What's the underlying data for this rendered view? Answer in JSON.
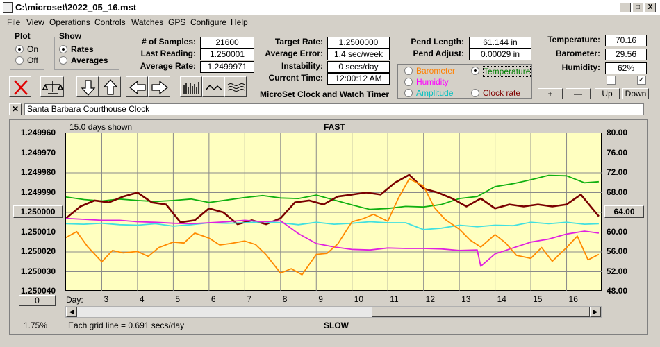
{
  "window": {
    "title": "C:\\microset\\2022_05_16.mst",
    "min_label": "_",
    "max_label": "□",
    "close_label": "X"
  },
  "menu": [
    "File",
    "View",
    "Operations",
    "Controls",
    "Watches",
    "GPS",
    "Configure",
    "Help"
  ],
  "plot_group": {
    "title": "Plot",
    "options": [
      "On",
      "Off"
    ],
    "selected": "On"
  },
  "show_group": {
    "title": "Show",
    "options": [
      "Rates",
      "Averages"
    ],
    "selected": "Rates"
  },
  "stats": {
    "samples_label": "# of Samples:",
    "samples": "21600",
    "last_reading_label": "Last Reading:",
    "last_reading": "1.250001",
    "average_rate_label": "Average Rate:",
    "average_rate": "1.2499971",
    "target_rate_label": "Target Rate:",
    "target_rate": "1.2500000",
    "average_error_label": "Average Error:",
    "average_error": "1.4 sec/week",
    "instability_label": "Instability:",
    "instability": "0 secs/day",
    "current_time_label": "Current Time:",
    "current_time": "12:00:12 AM",
    "app_name": "MicroSet Clock and Watch Timer",
    "pend_length_label": "Pend Length:",
    "pend_length": "61.144 in",
    "pend_adjust_label": "Pend Adjust:",
    "pend_adjust": "0.00029 in",
    "temperature_label": "Temperature:",
    "temperature": "70.16",
    "barometer_label": "Barometer:",
    "barometer": "29.56",
    "humidity_label": "Humidity:",
    "humidity": "62%"
  },
  "sensor_options": [
    {
      "label": "Barometer",
      "color": "#ff8000",
      "selected": false
    },
    {
      "label": "Temperature",
      "color": "#008000",
      "selected": true
    },
    {
      "label": "Humidity",
      "color": "#ff00ff",
      "selected": false
    },
    {
      "label": "Clock rate",
      "color": "#800000",
      "selected": false
    },
    {
      "label": "Amplitude",
      "color": "#00c0c0",
      "selected": false
    }
  ],
  "scale_buttons": [
    "+",
    "—",
    "Up",
    "Down"
  ],
  "clock_name": "Santa Barbara Courthouse Clock",
  "chart": {
    "days_shown": "15.0 days shown",
    "top_label": "FAST",
    "bottom_label": "SLOW",
    "day_label": "Day:",
    "grid_note": "Each grid line = 0.691 secs/day",
    "percent": "1.75%",
    "left_button": "1.250000",
    "right_button": "64.00",
    "zero_button": "0"
  },
  "chart_data": {
    "type": "line",
    "left_axis_ticks": [
      "1.249960",
      "1.249970",
      "1.249980",
      "1.249990",
      "1.250000",
      "1.250010",
      "1.250020",
      "1.250030",
      "1.250040"
    ],
    "right_axis_ticks": [
      "80.00",
      "76.00",
      "72.00",
      "68.00",
      "64.00",
      "60.00",
      "56.00",
      "52.00",
      "48.00"
    ],
    "x_ticks": [
      3,
      4,
      5,
      6,
      7,
      8,
      9,
      10,
      11,
      12,
      13,
      14,
      15,
      16
    ],
    "xlim": [
      2.0,
      17.0
    ],
    "ylim_rate": [
      1.24996,
      1.25004
    ],
    "ylim_right": [
      48,
      80
    ],
    "series": [
      {
        "name": "Temperature",
        "color": "#10b010",
        "x": [
          2.0,
          2.5,
          3.0,
          3.5,
          4.0,
          4.5,
          5.0,
          5.5,
          6.0,
          6.5,
          7.0,
          7.5,
          8.0,
          8.5,
          9.0,
          9.5,
          10.0,
          10.5,
          11.0,
          11.5,
          12.0,
          12.5,
          13.0,
          13.5,
          14.0,
          14.5,
          15.0,
          15.5,
          16.0,
          16.5,
          16.9
        ],
        "y": [
          67.1,
          66.6,
          66.3,
          66.7,
          66.4,
          66.2,
          66.4,
          66.7,
          66.0,
          66.5,
          67.0,
          67.4,
          66.9,
          66.8,
          67.5,
          66.5,
          65.5,
          64.6,
          64.8,
          65.2,
          65.1,
          65.6,
          66.8,
          67.2,
          69.2,
          69.8,
          70.6,
          71.5,
          71.4,
          70.0,
          70.2
        ]
      },
      {
        "name": "Clock rate",
        "color": "#7a0000",
        "x": [
          2.0,
          2.4,
          2.8,
          3.2,
          3.6,
          4.0,
          4.4,
          4.8,
          5.2,
          5.6,
          6.0,
          6.4,
          6.8,
          7.2,
          7.6,
          8.0,
          8.4,
          8.8,
          9.2,
          9.6,
          10.0,
          10.4,
          10.8,
          11.2,
          11.6,
          12.0,
          12.4,
          12.8,
          13.2,
          13.6,
          14.0,
          14.4,
          14.8,
          15.2,
          15.6,
          16.0,
          16.4,
          16.9
        ],
        "y": [
          1.250003,
          1.249997,
          1.249994,
          1.249995,
          1.249992,
          1.24999,
          1.249995,
          1.249996,
          1.250005,
          1.250004,
          1.249998,
          1.25,
          1.250006,
          1.250004,
          1.250006,
          1.250003,
          1.249995,
          1.249994,
          1.249996,
          1.249992,
          1.249991,
          1.24999,
          1.249991,
          1.249985,
          1.249981,
          1.249988,
          1.24999,
          1.249993,
          1.249997,
          1.249993,
          1.249998,
          1.249996,
          1.249997,
          1.249996,
          1.249997,
          1.249996,
          1.249991,
          1.250002
        ]
      },
      {
        "name": "Amplitude",
        "color": "#40e0e0",
        "x": [
          2.0,
          2.5,
          3.0,
          3.5,
          4.0,
          4.5,
          5.0,
          5.5,
          6.0,
          6.5,
          7.0,
          7.5,
          8.0,
          8.5,
          9.0,
          9.5,
          10.0,
          10.5,
          11.0,
          11.5,
          12.0,
          12.5,
          13.0,
          13.5,
          14.0,
          14.5,
          15.0,
          15.5,
          16.0,
          16.5,
          16.9
        ],
        "y": [
          61.7,
          61.6,
          61.8,
          61.5,
          61.4,
          61.7,
          61.2,
          61.5,
          61.9,
          61.8,
          61.9,
          62.1,
          61.9,
          61.5,
          62.0,
          61.6,
          61.8,
          62.1,
          61.9,
          61.9,
          60.5,
          60.8,
          61.4,
          61.1,
          61.4,
          61.3,
          62.0,
          61.7,
          62.0,
          61.6,
          61.7
        ]
      },
      {
        "name": "Humidity",
        "color": "#e020e0",
        "x": [
          2.0,
          2.5,
          3.0,
          3.5,
          4.0,
          4.5,
          5.0,
          5.5,
          6.0,
          6.5,
          7.0,
          7.5,
          8.0,
          8.5,
          9.0,
          9.5,
          10.0,
          10.5,
          11.0,
          11.5,
          12.0,
          12.5,
          13.0,
          13.5,
          13.6,
          14.0,
          14.5,
          15.0,
          15.5,
          16.0,
          16.5,
          16.9
        ],
        "y": [
          62.8,
          62.6,
          62.4,
          62.4,
          62.1,
          62.0,
          61.8,
          61.7,
          61.9,
          62.1,
          62.4,
          62.1,
          62.3,
          59.7,
          57.7,
          57.0,
          56.5,
          56.4,
          56.8,
          56.7,
          56.7,
          56.6,
          56.3,
          56.4,
          53.1,
          55.6,
          56.8,
          58.0,
          58.6,
          59.6,
          60.2,
          59.8
        ]
      },
      {
        "name": "Barometer",
        "color": "#ff8a00",
        "x": [
          2.0,
          2.3,
          2.6,
          3.0,
          3.3,
          3.6,
          4.0,
          4.3,
          4.6,
          5.0,
          5.3,
          5.6,
          6.0,
          6.3,
          6.6,
          7.0,
          7.3,
          7.6,
          8.0,
          8.3,
          8.6,
          9.0,
          9.3,
          9.6,
          10.0,
          10.3,
          10.6,
          11.0,
          11.3,
          11.6,
          12.0,
          12.3,
          12.6,
          13.0,
          13.3,
          13.6,
          14.0,
          14.3,
          14.6,
          15.0,
          15.3,
          15.6,
          16.0,
          16.3,
          16.6,
          16.9
        ],
        "y": [
          58.9,
          60.1,
          57.1,
          54.0,
          56.3,
          55.8,
          56.1,
          55.1,
          56.9,
          58.0,
          57.8,
          59.8,
          58.8,
          57.4,
          57.7,
          58.2,
          57.5,
          55.4,
          51.7,
          52.6,
          51.4,
          55.5,
          55.7,
          57.6,
          62.1,
          62.7,
          63.6,
          62.2,
          66.9,
          70.8,
          69.3,
          65.0,
          62.6,
          60.6,
          58.4,
          57.0,
          59.5,
          57.8,
          55.3,
          54.7,
          56.9,
          54.1,
          56.9,
          59.2,
          54.4,
          55.5
        ]
      }
    ]
  }
}
